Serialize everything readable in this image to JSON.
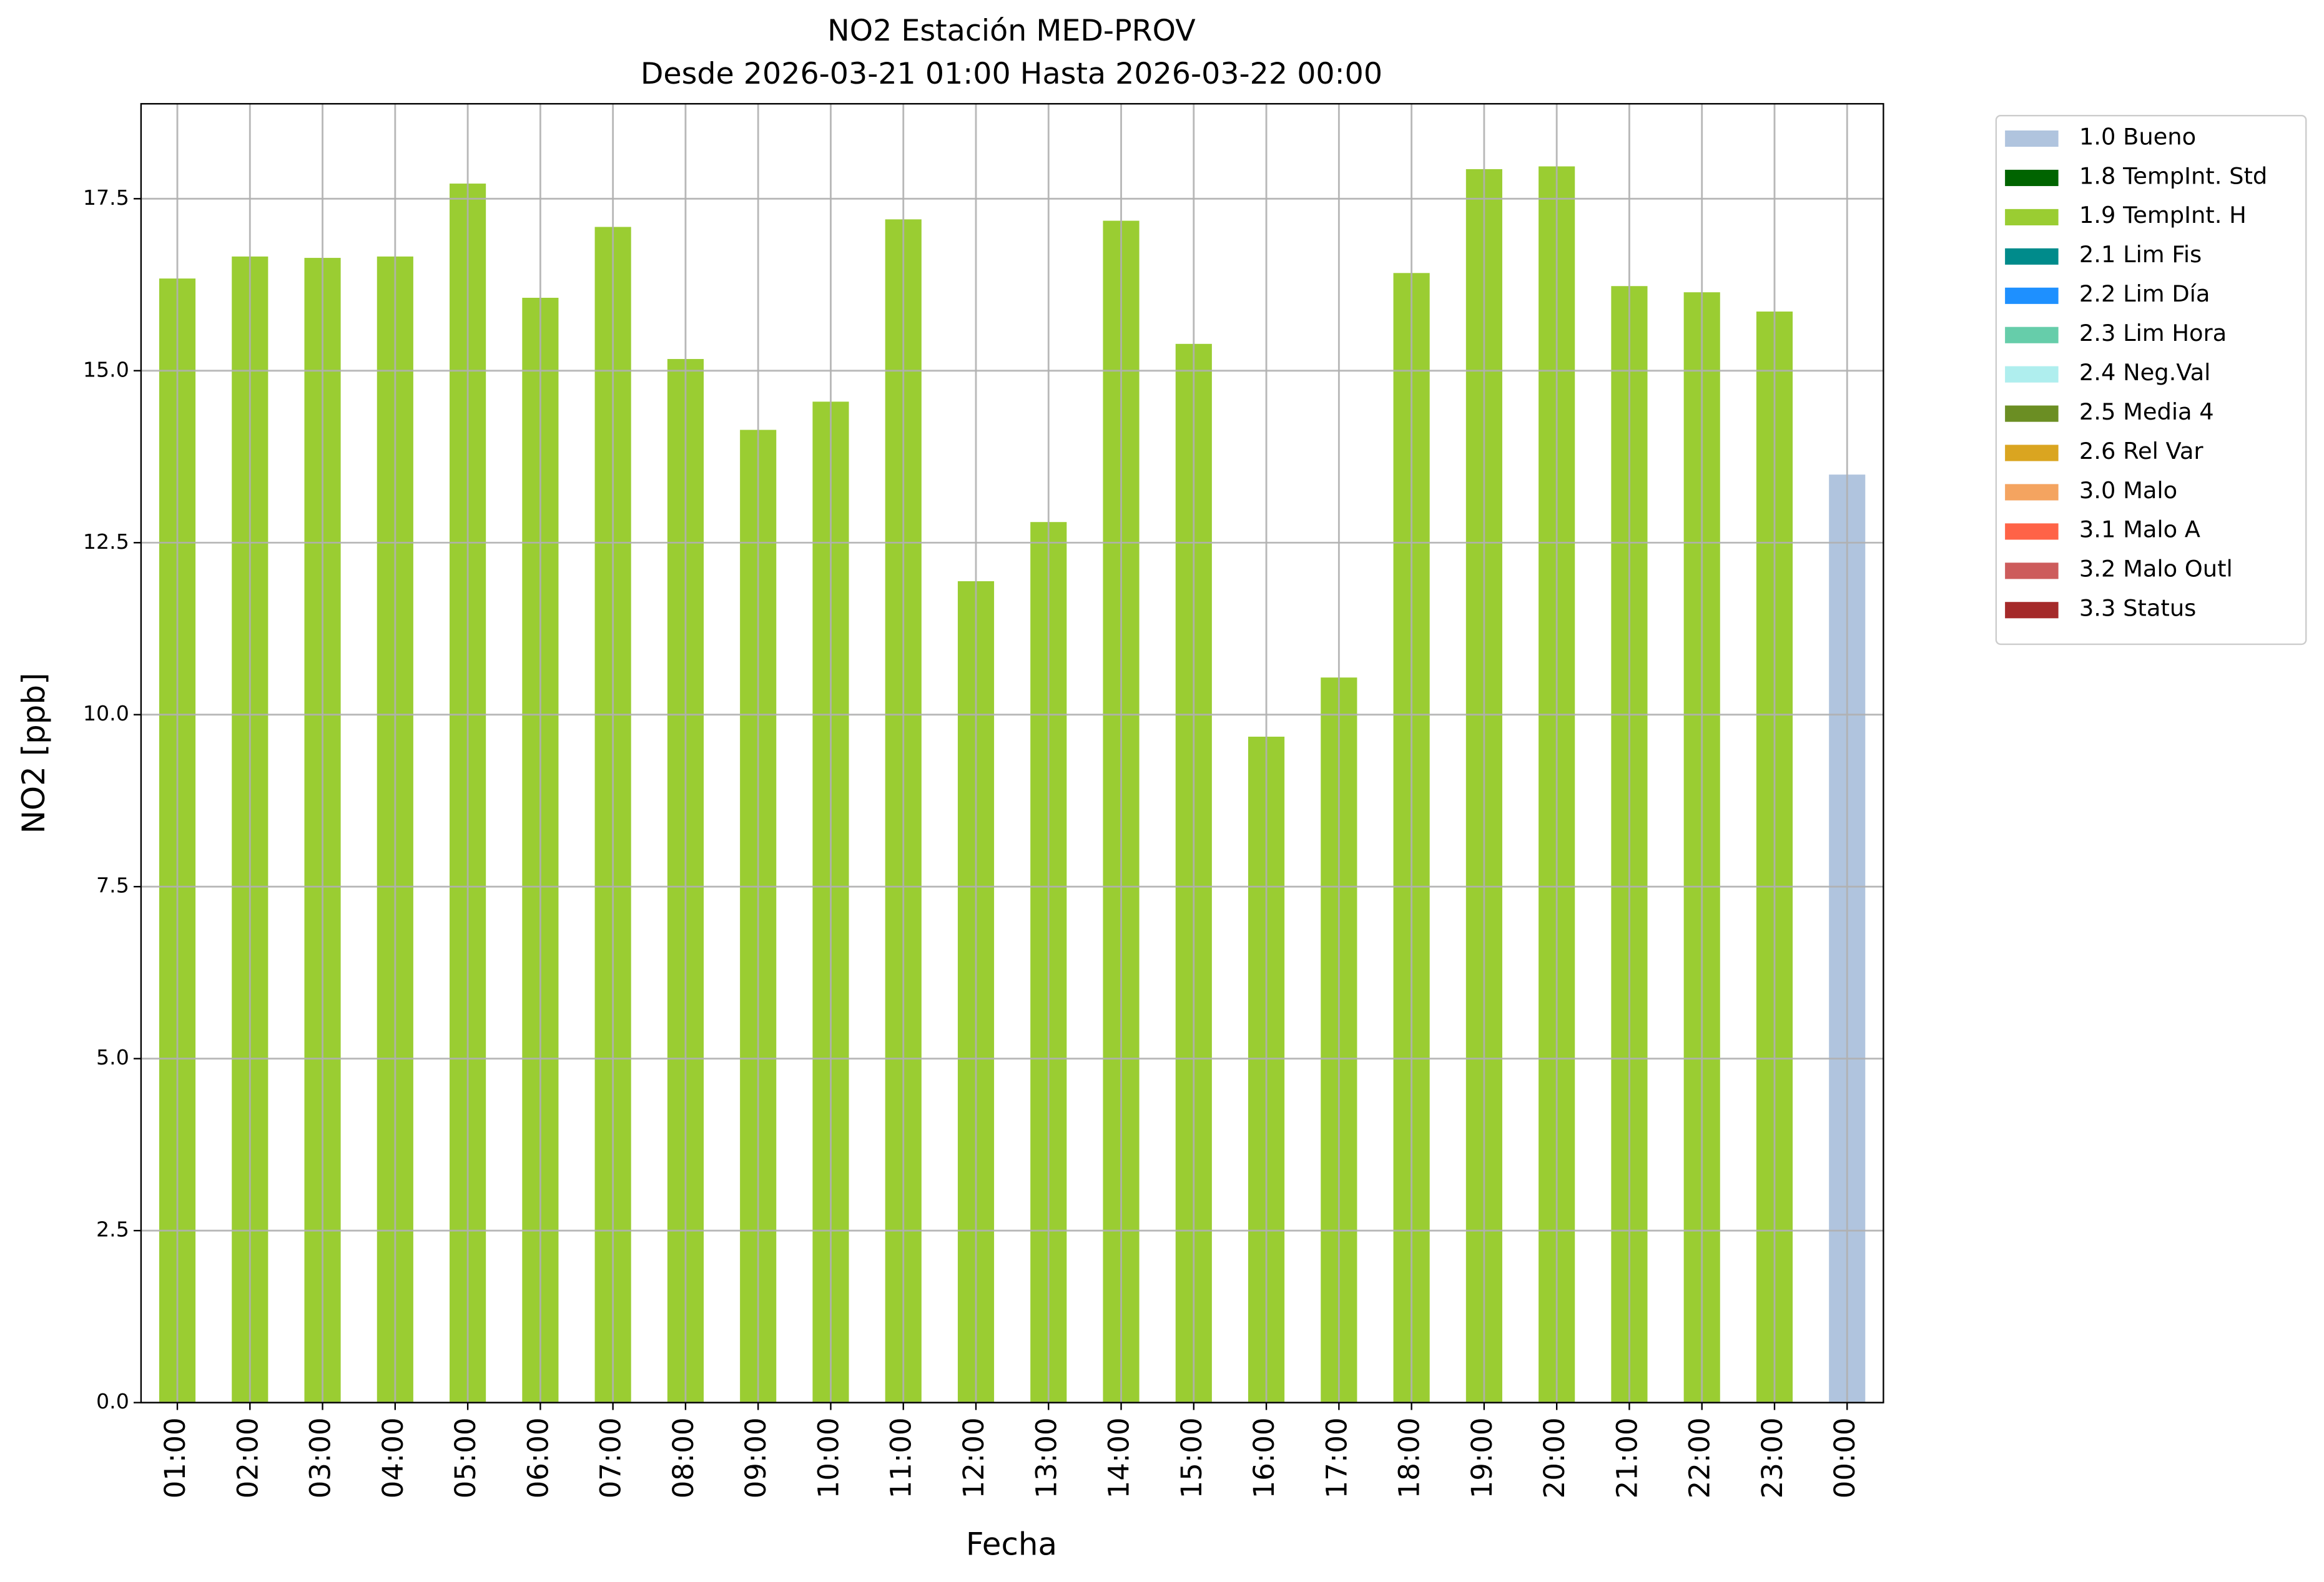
{
  "chart_data": {
    "type": "stacked_bar",
    "title": "NO2 Estación MED-PROV",
    "subtitle": "Desde 2026-03-21 01:00 Hasta 2026-03-22 00:00",
    "x_label": "Fecha",
    "y_label": "NO2 [ppb]",
    "categories": [
      "01:00",
      "02:00",
      "03:00",
      "04:00",
      "05:00",
      "06:00",
      "07:00",
      "08:00",
      "09:00",
      "10:00",
      "11:00",
      "12:00",
      "13:00",
      "14:00",
      "15:00",
      "16:00",
      "17:00",
      "18:00",
      "19:00",
      "20:00",
      "21:00",
      "22:00",
      "23:00",
      "00:00"
    ],
    "series": [
      {
        "name": "1.0 Bueno",
        "color": "#b0c4de",
        "values": [
          null,
          null,
          null,
          null,
          null,
          null,
          null,
          null,
          null,
          null,
          null,
          null,
          null,
          null,
          null,
          null,
          null,
          null,
          null,
          null,
          null,
          null,
          null,
          13.49
        ]
      },
      {
        "name": "1.8 TempInt. Std",
        "color": "#006400",
        "values": [
          null,
          null,
          null,
          null,
          null,
          null,
          null,
          null,
          null,
          null,
          null,
          null,
          null,
          null,
          null,
          null,
          null,
          null,
          null,
          null,
          null,
          null,
          null,
          null
        ]
      },
      {
        "name": "1.9 TempInt. H",
        "color": "#9acd32",
        "values": [
          16.34,
          16.66,
          16.64,
          16.66,
          17.72,
          16.06,
          17.09,
          15.17,
          14.14,
          14.55,
          17.2,
          11.94,
          12.8,
          17.18,
          15.39,
          9.68,
          10.54,
          16.42,
          17.93,
          17.97,
          16.23,
          16.14,
          15.86,
          null
        ]
      },
      {
        "name": "2.1 Lim Fis",
        "color": "#008b8b",
        "values": [
          null,
          null,
          null,
          null,
          null,
          null,
          null,
          null,
          null,
          null,
          null,
          null,
          null,
          null,
          null,
          null,
          null,
          null,
          null,
          null,
          null,
          null,
          null,
          null
        ]
      },
      {
        "name": "2.2 Lim Día",
        "color": "#1e90ff",
        "values": [
          null,
          null,
          null,
          null,
          null,
          null,
          null,
          null,
          null,
          null,
          null,
          null,
          null,
          null,
          null,
          null,
          null,
          null,
          null,
          null,
          null,
          null,
          null,
          null
        ]
      },
      {
        "name": "2.3 Lim Hora",
        "color": "#66cdaa",
        "values": [
          null,
          null,
          null,
          null,
          null,
          null,
          null,
          null,
          null,
          null,
          null,
          null,
          null,
          null,
          null,
          null,
          null,
          null,
          null,
          null,
          null,
          null,
          null,
          null
        ]
      },
      {
        "name": "2.4 Neg.Val",
        "color": "#afeeee",
        "values": [
          null,
          null,
          null,
          null,
          null,
          null,
          null,
          null,
          null,
          null,
          null,
          null,
          null,
          null,
          null,
          null,
          null,
          null,
          null,
          null,
          null,
          null,
          null,
          null
        ]
      },
      {
        "name": "2.5 Media 4",
        "color": "#6b8e23",
        "values": [
          null,
          null,
          null,
          null,
          null,
          null,
          null,
          null,
          null,
          null,
          null,
          null,
          null,
          null,
          null,
          null,
          null,
          null,
          null,
          null,
          null,
          null,
          null,
          null
        ]
      },
      {
        "name": "2.6 Rel Var",
        "color": "#daa520",
        "values": [
          null,
          null,
          null,
          null,
          null,
          null,
          null,
          null,
          null,
          null,
          null,
          null,
          null,
          null,
          null,
          null,
          null,
          null,
          null,
          null,
          null,
          null,
          null,
          null
        ]
      },
      {
        "name": "3.0 Malo",
        "color": "#f4a460",
        "values": [
          null,
          null,
          null,
          null,
          null,
          null,
          null,
          null,
          null,
          null,
          null,
          null,
          null,
          null,
          null,
          null,
          null,
          null,
          null,
          null,
          null,
          null,
          null,
          null
        ]
      },
      {
        "name": "3.1 Malo A",
        "color": "#ff6347",
        "values": [
          null,
          null,
          null,
          null,
          null,
          null,
          null,
          null,
          null,
          null,
          null,
          null,
          null,
          null,
          null,
          null,
          null,
          null,
          null,
          null,
          null,
          null,
          null,
          null
        ]
      },
      {
        "name": "3.2 Malo Outl",
        "color": "#cd5c5c",
        "values": [
          null,
          null,
          null,
          null,
          null,
          null,
          null,
          null,
          null,
          null,
          null,
          null,
          null,
          null,
          null,
          null,
          null,
          null,
          null,
          null,
          null,
          null,
          null,
          null
        ]
      },
      {
        "name": "3.3 Status",
        "color": "#a52a2a",
        "values": [
          null,
          null,
          null,
          null,
          null,
          null,
          null,
          null,
          null,
          null,
          null,
          null,
          null,
          null,
          null,
          null,
          null,
          null,
          null,
          null,
          null,
          null,
          null,
          null
        ]
      }
    ],
    "ylim": [
      0,
      18.88
    ],
    "yticks": [
      {
        "value": 0,
        "label": "0.0"
      },
      2.5,
      {
        "value": 5,
        "label": "5.0"
      },
      7.5,
      {
        "value": 10,
        "label": "10.0"
      },
      12.5,
      {
        "value": 15,
        "label": "15.0"
      },
      17.5
    ],
    "grid": true,
    "legend": "outside upper right"
  }
}
